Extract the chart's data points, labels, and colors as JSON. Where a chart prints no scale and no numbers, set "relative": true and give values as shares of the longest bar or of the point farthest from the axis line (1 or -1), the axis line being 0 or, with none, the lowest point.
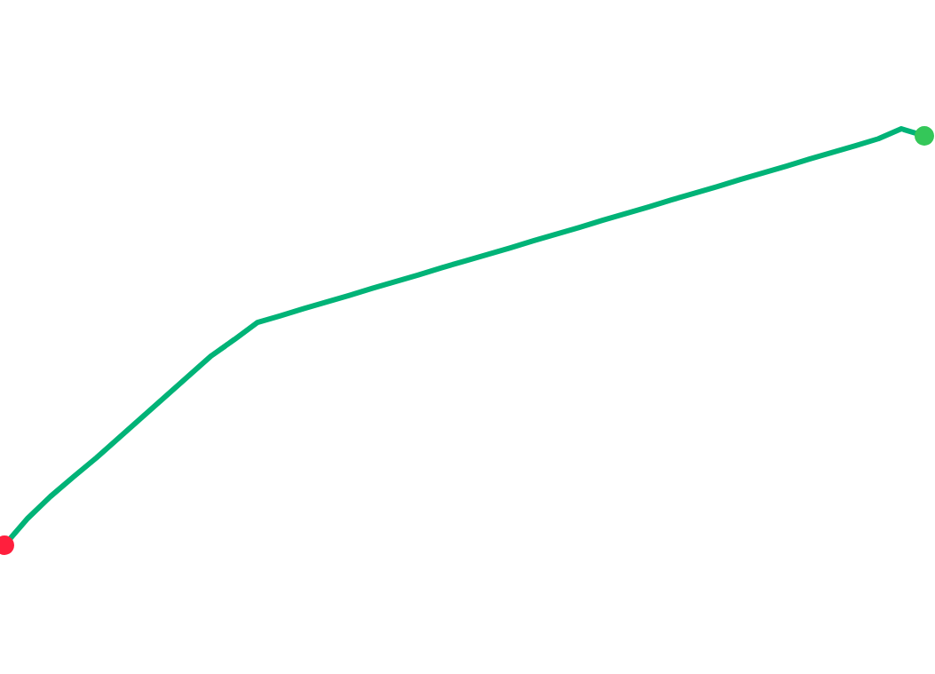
{
  "chart_data": {
    "type": "line",
    "relative": true,
    "categories": [
      null,
      null,
      null,
      null,
      null,
      null,
      null,
      null,
      null,
      null,
      null,
      null,
      null,
      null,
      null,
      null,
      null,
      null,
      null,
      null,
      null,
      null,
      null,
      null,
      null,
      null,
      null,
      null,
      null,
      null,
      null,
      null,
      null,
      null,
      null,
      null,
      null,
      null,
      null,
      null,
      null
    ],
    "series": [
      {
        "color": "#00b377",
        "values": [
          0,
          0.064,
          0.117,
          0.164,
          0.21,
          0.259,
          0.308,
          0.357,
          0.406,
          0.455,
          0.494,
          0.535,
          0.551,
          0.568,
          0.584,
          0.6,
          0.617,
          0.633,
          0.649,
          0.666,
          0.682,
          0.698,
          0.714,
          0.731,
          0.747,
          0.763,
          0.78,
          0.796,
          0.812,
          0.829,
          0.845,
          0.861,
          0.878,
          0.894,
          0.91,
          0.927,
          0.943,
          0.959,
          0.976,
          1,
          0.983
        ],
        "colors": [
          "#ff1f3d",
          null,
          null,
          null,
          null,
          null,
          null,
          null,
          null,
          null,
          null,
          null,
          null,
          null,
          null,
          null,
          null,
          null,
          null,
          null,
          null,
          null,
          null,
          null,
          null,
          null,
          null,
          null,
          null,
          null,
          null,
          null,
          null,
          null,
          null,
          null,
          null,
          null,
          null,
          null,
          "#34c759"
        ]
      }
    ]
  }
}
